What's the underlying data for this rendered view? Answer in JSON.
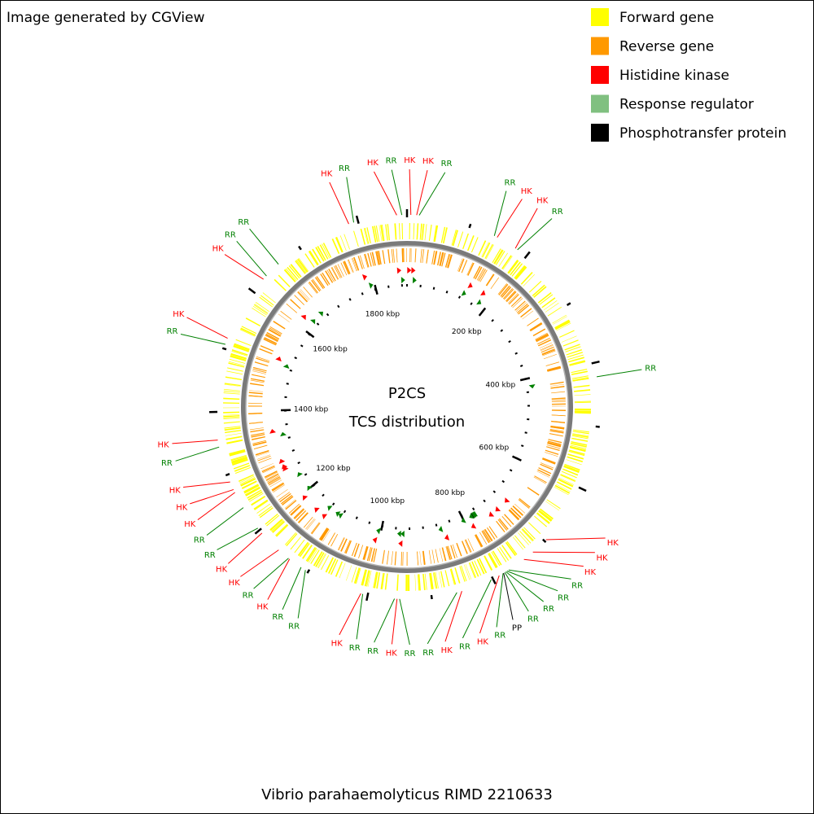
{
  "header": {
    "title": "Image generated by CGView"
  },
  "legend": [
    {
      "label": "Forward gene",
      "color": "#ffff00"
    },
    {
      "label": "Reverse gene",
      "color": "#ff9900"
    },
    {
      "label": "Histidine kinase",
      "color": "#ff0000"
    },
    {
      "label": "Response regulator",
      "color": "#80c080"
    },
    {
      "label": "Phosphotransfer protein",
      "color": "#000000"
    }
  ],
  "center": {
    "title": "P2CS",
    "subtitle": "TCS distribution"
  },
  "footer": {
    "organism": "Vibrio parahaemolyticus RIMD 2210633"
  },
  "genome_length_kbp": 1877,
  "kbp_ticks": [
    {
      "value": 200,
      "label": "200 kbp"
    },
    {
      "value": 400,
      "label": "400 kbp"
    },
    {
      "value": 600,
      "label": "600 kbp"
    },
    {
      "value": 800,
      "label": "800 kbp"
    },
    {
      "value": 1000,
      "label": "1000 kbp"
    },
    {
      "value": 1200,
      "label": "1200 kbp"
    },
    {
      "value": 1400,
      "label": "1400 kbp"
    },
    {
      "value": 1600,
      "label": "1600 kbp"
    },
    {
      "value": 1800,
      "label": "1800 kbp"
    }
  ],
  "label_colors": {
    "HK": "#ff0000",
    "RR": "#008000",
    "PP": "#000000"
  },
  "features": [
    {
      "label": "HK",
      "kbp": 6
    },
    {
      "label": "HK",
      "kbp": 15
    },
    {
      "label": "RR",
      "kbp": 19
    },
    {
      "label": "RR",
      "kbp": 141
    },
    {
      "label": "HK",
      "kbp": 146
    },
    {
      "label": "HK",
      "kbp": 179
    },
    {
      "label": "RR",
      "kbp": 183
    },
    {
      "label": "RR",
      "kbp": 422
    },
    {
      "label": "HK",
      "kbp": 697
    },
    {
      "label": "HK",
      "kbp": 725
    },
    {
      "label": "HK",
      "kbp": 743
    },
    {
      "label": "RR",
      "kbp": 772
    },
    {
      "label": "RR",
      "kbp": 775
    },
    {
      "label": "RR",
      "kbp": 777
    },
    {
      "label": "RR",
      "kbp": 779
    },
    {
      "label": "PP",
      "kbp": 781
    },
    {
      "label": "RR",
      "kbp": 782
    },
    {
      "label": "HK",
      "kbp": 789
    },
    {
      "label": "RR",
      "kbp": 803
    },
    {
      "label": "HK",
      "kbp": 852
    },
    {
      "label": "RR",
      "kbp": 860
    },
    {
      "label": "RR",
      "kbp": 950
    },
    {
      "label": "HK",
      "kbp": 954
    },
    {
      "label": "RR",
      "kbp": 958
    },
    {
      "label": "RR",
      "kbp": 1008
    },
    {
      "label": "HK",
      "kbp": 1011
    },
    {
      "label": "RR",
      "kbp": 1105
    },
    {
      "label": "RR",
      "kbp": 1113
    },
    {
      "label": "HK",
      "kbp": 1135
    },
    {
      "label": "RR",
      "kbp": 1137
    },
    {
      "label": "HK",
      "kbp": 1157
    },
    {
      "label": "HK",
      "kbp": 1194
    },
    {
      "label": "RR",
      "kbp": 1204
    },
    {
      "label": "RR",
      "kbp": 1243
    },
    {
      "label": "HK",
      "kbp": 1270
    },
    {
      "label": "HK",
      "kbp": 1275
    },
    {
      "label": "HK",
      "kbp": 1288
    },
    {
      "label": "RR",
      "kbp": 1345
    },
    {
      "label": "HK",
      "kbp": 1356
    },
    {
      "label": "RR",
      "kbp": 1507
    },
    {
      "label": "HK",
      "kbp": 1517
    },
    {
      "label": "HK",
      "kbp": 1625
    },
    {
      "label": "RR",
      "kbp": 1632
    },
    {
      "label": "RR",
      "kbp": 1658
    },
    {
      "label": "HK",
      "kbp": 1785
    },
    {
      "label": "RR",
      "kbp": 1793
    },
    {
      "label": "HK",
      "kbp": 1861
    },
    {
      "label": "RR",
      "kbp": 1869
    }
  ]
}
